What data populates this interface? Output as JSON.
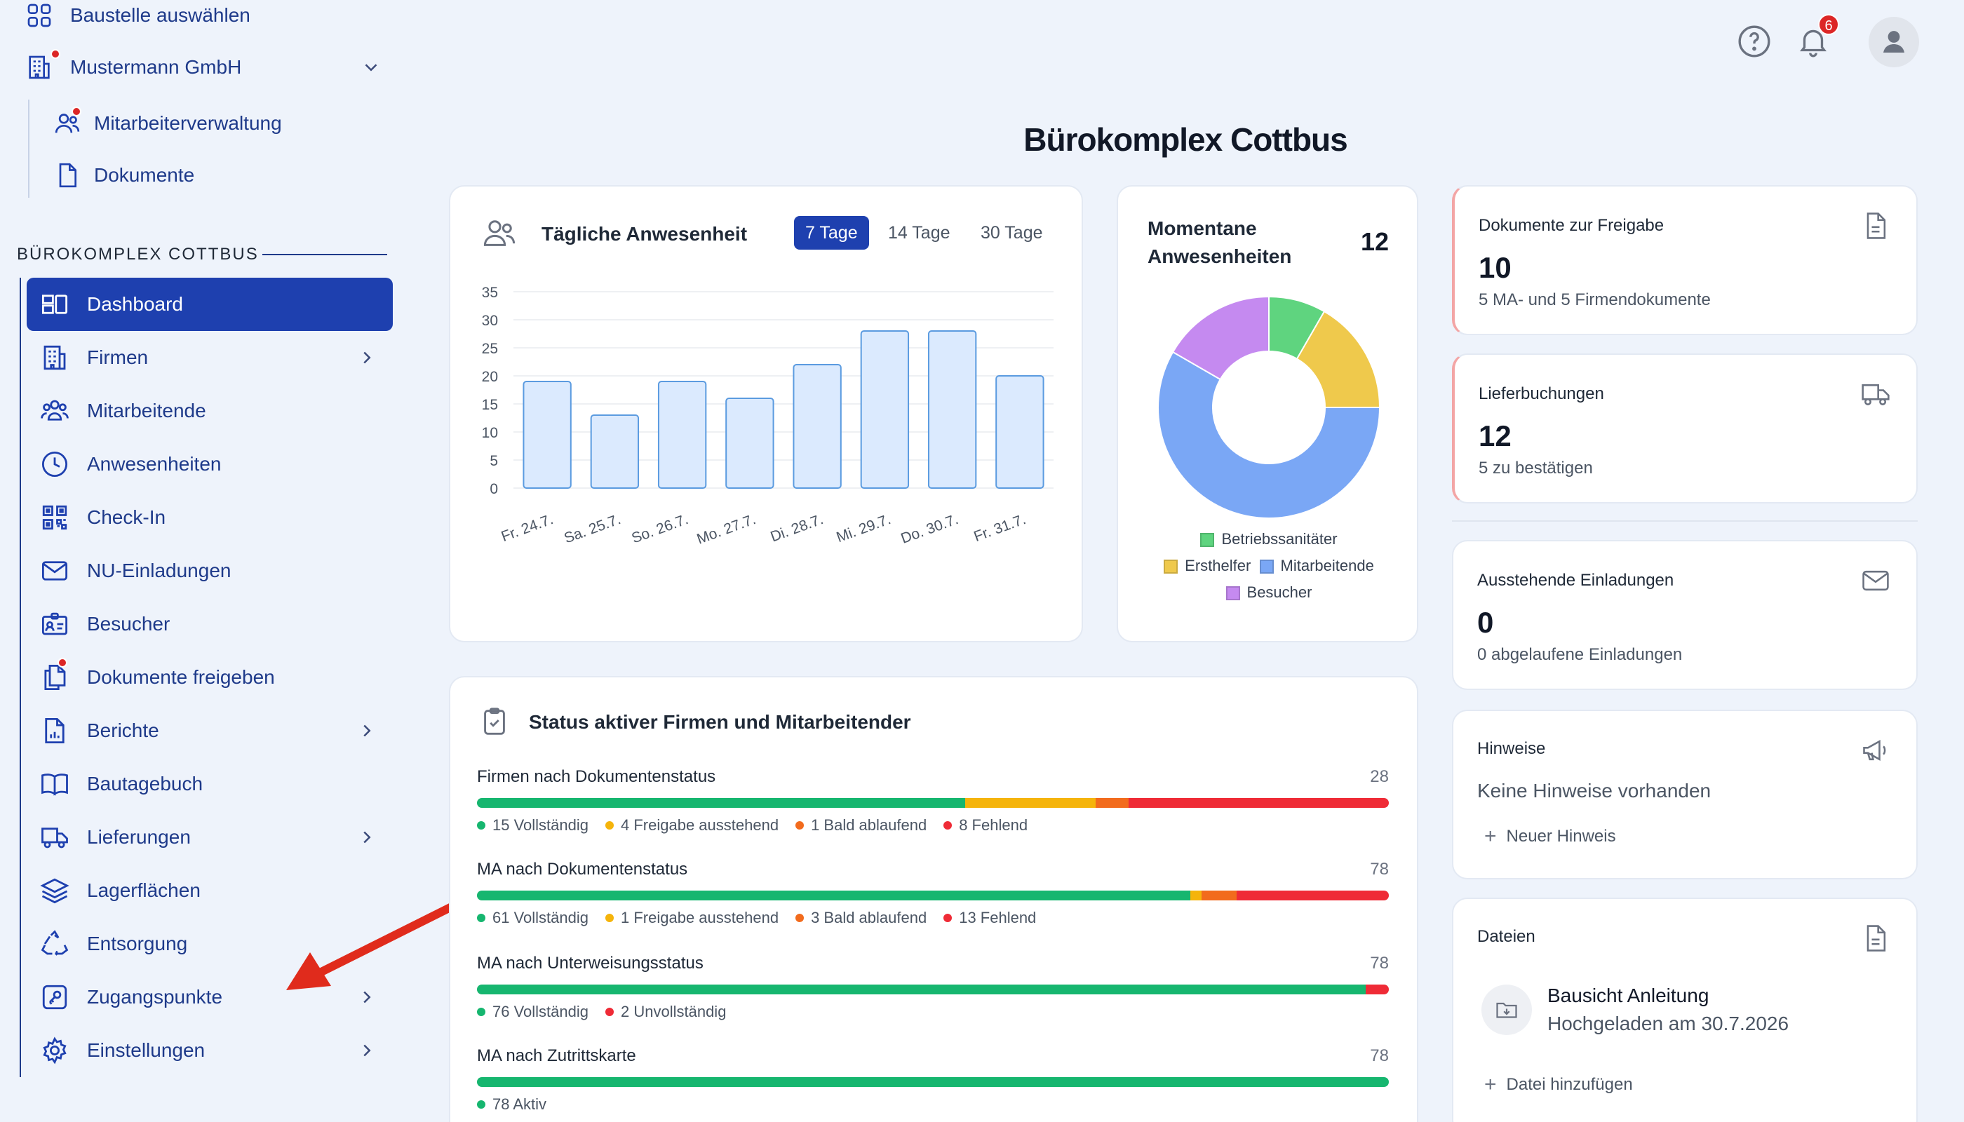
{
  "sidebar": {
    "select_site": "Baustelle auswählen",
    "company": "Mustermann GmbH",
    "company_sub": [
      {
        "label": "Mitarbeiterverwaltung"
      },
      {
        "label": "Dokumente"
      }
    ],
    "section_title": "BÜROKOMPLEX COTTBUS",
    "items": [
      {
        "label": "Dashboard",
        "icon": "dashboard-icon"
      },
      {
        "label": "Firmen",
        "icon": "building-icon"
      },
      {
        "label": "Mitarbeitende",
        "icon": "users-icon"
      },
      {
        "label": "Anwesenheiten",
        "icon": "clock-icon"
      },
      {
        "label": "Check-In",
        "icon": "qr-code-icon"
      },
      {
        "label": "NU-Einladungen",
        "icon": "mail-icon"
      },
      {
        "label": "Besucher",
        "icon": "badge-icon"
      },
      {
        "label": "Dokumente freigeben",
        "icon": "documents-icon"
      },
      {
        "label": "Berichte",
        "icon": "report-icon"
      },
      {
        "label": "Bautagebuch",
        "icon": "book-icon"
      },
      {
        "label": "Lieferungen",
        "icon": "truck-icon"
      },
      {
        "label": "Lagerflächen",
        "icon": "layers-icon"
      },
      {
        "label": "Entsorgung",
        "icon": "recycle-icon"
      },
      {
        "label": "Zugangspunkte",
        "icon": "access-point-icon"
      },
      {
        "label": "Einstellungen",
        "icon": "gear-icon"
      }
    ]
  },
  "header": {
    "title": "Bürokomplex Cottbus",
    "notification_count": "6"
  },
  "attendance": {
    "title": "Tägliche Anwesenheit",
    "ranges": [
      "7 Tage",
      "14 Tage",
      "30 Tage"
    ],
    "selected_range": "7 Tage"
  },
  "chart_data": [
    {
      "type": "bar",
      "categories": [
        "Fr. 24.7.",
        "Sa. 25.7.",
        "So. 26.7.",
        "Mo. 27.7.",
        "Di. 28.7.",
        "Mi. 29.7.",
        "Do. 30.7.",
        "Fr. 31.7."
      ],
      "values": [
        19,
        13,
        19,
        16,
        22,
        28,
        28,
        20
      ],
      "ylim": [
        0,
        35
      ],
      "yticks": [
        0,
        5,
        10,
        15,
        20,
        25,
        30,
        35
      ],
      "grid": true,
      "color": "#dbeafe",
      "border_color": "#5b9be0"
    },
    {
      "type": "pie",
      "title": "Momentane Anwesenheiten",
      "total": "12",
      "series": [
        {
          "name": "Betriebssanitäter",
          "value": 1,
          "color": "#5fd47f"
        },
        {
          "name": "Ersthelfer",
          "value": 2,
          "color": "#efc94c"
        },
        {
          "name": "Mitarbeitende",
          "value": 7,
          "color": "#7aa7f5"
        },
        {
          "name": "Besucher",
          "value": 2,
          "color": "#c58af0"
        }
      ]
    }
  ],
  "status": {
    "title": "Status aktiver Firmen und Mitarbeitender",
    "rows": [
      {
        "label": "Firmen nach Dokumentenstatus",
        "total": "28",
        "segments": [
          {
            "text": "15 Vollständig",
            "value": 15,
            "color": "#16b66f"
          },
          {
            "text": "4 Freigabe ausstehend",
            "value": 4,
            "color": "#f5b40b"
          },
          {
            "text": "1 Bald ablaufend",
            "value": 1,
            "color": "#f26b1d"
          },
          {
            "text": "8 Fehlend",
            "value": 8,
            "color": "#ef2b36"
          }
        ]
      },
      {
        "label": "MA nach Dokumentenstatus",
        "total": "78",
        "segments": [
          {
            "text": "61 Vollständig",
            "value": 61,
            "color": "#16b66f"
          },
          {
            "text": "1 Freigabe ausstehend",
            "value": 1,
            "color": "#f5b40b"
          },
          {
            "text": "3 Bald ablaufend",
            "value": 3,
            "color": "#f26b1d"
          },
          {
            "text": "13 Fehlend",
            "value": 13,
            "color": "#ef2b36"
          }
        ]
      },
      {
        "label": "MA nach Unterweisungsstatus",
        "total": "78",
        "segments": [
          {
            "text": "76 Vollständig",
            "value": 76,
            "color": "#16b66f"
          },
          {
            "text": "2 Unvollständig",
            "value": 2,
            "color": "#ef2b36"
          }
        ]
      },
      {
        "label": "MA nach Zutrittskarte",
        "total": "78",
        "segments": [
          {
            "text": "78 Aktiv",
            "value": 78,
            "color": "#16b66f"
          }
        ]
      }
    ]
  },
  "cards": {
    "docs": {
      "title": "Dokumente zur Freigabe",
      "value": "10",
      "sub": "5 MA- und 5 Firmendokumente"
    },
    "deliveries": {
      "title": "Lieferbuchungen",
      "value": "12",
      "sub": "5 zu bestätigen"
    },
    "invites": {
      "title": "Ausstehende Einladungen",
      "value": "0",
      "sub": "0 abgelaufene Einladungen"
    },
    "notes": {
      "title": "Hinweise",
      "empty": "Keine Hinweise vorhanden",
      "add": "Neuer Hinweis"
    },
    "files": {
      "title": "Dateien",
      "file_name": "Bausicht Anleitung",
      "file_date": "Hochgeladen am 30.7.2026",
      "add": "Datei hinzufügen"
    }
  },
  "colors": {
    "accent": "#1e40af",
    "alert": "#ef2b36"
  }
}
